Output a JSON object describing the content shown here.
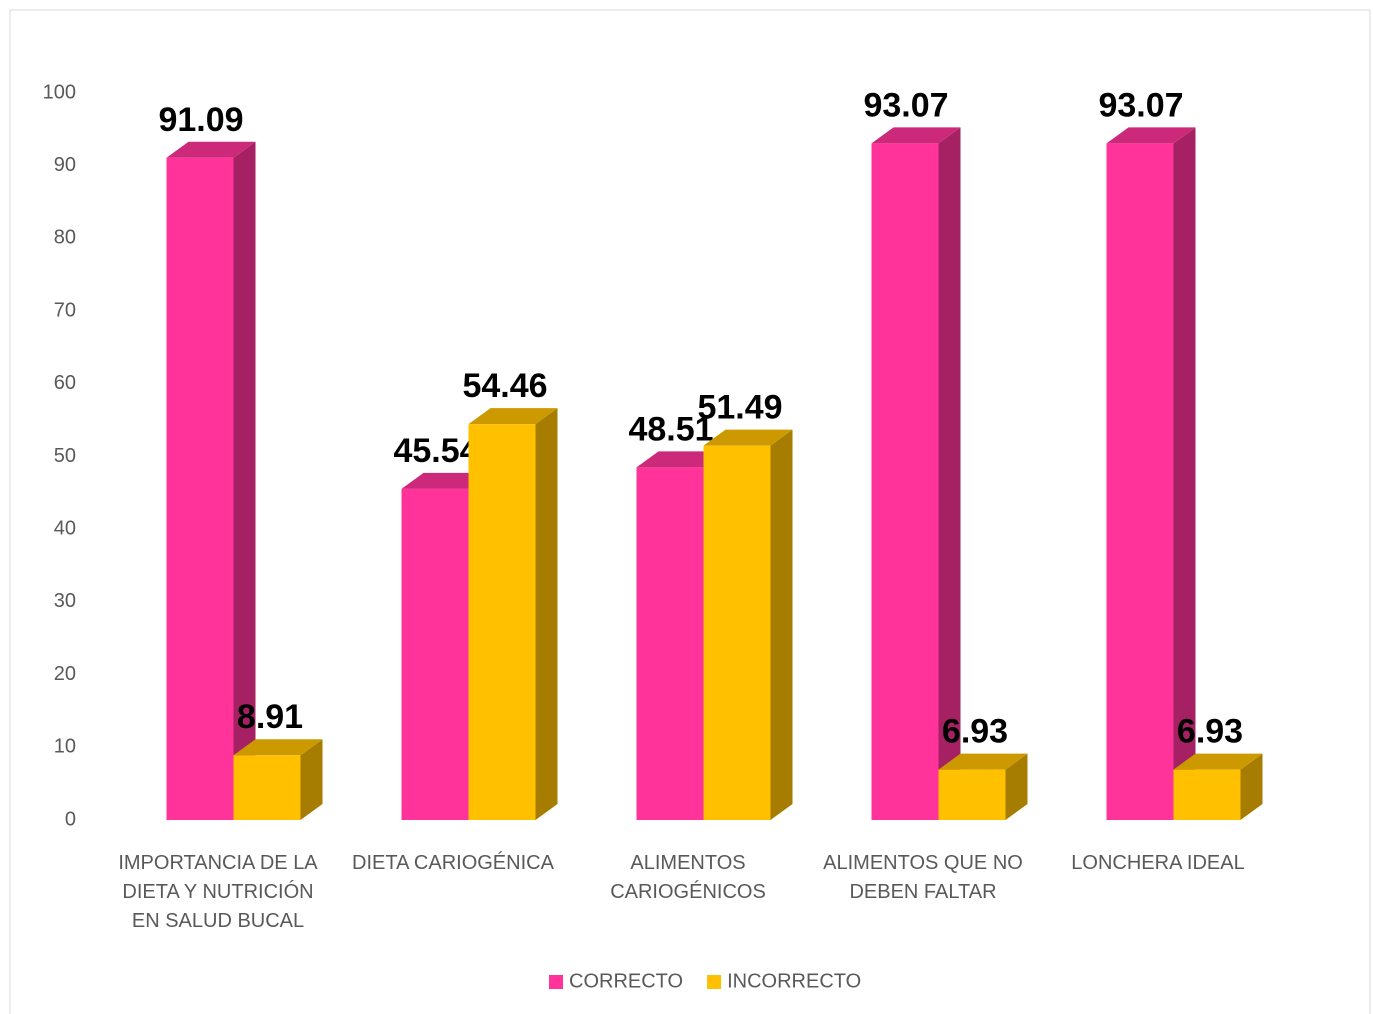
{
  "chart_data": {
    "type": "bar3d",
    "categories": [
      "IMPORTANCIA DE LA DIETA Y NUTRICIÓN EN SALUD BUCAL",
      "DIETA CARIOGÉNICA",
      "ALIMENTOS CARIOGÉNICOS",
      "ALIMENTOS QUE NO DEBEN FALTAR",
      "LONCHERA IDEAL"
    ],
    "series": [
      {
        "name": "CORRECTO",
        "color": "#ff3399",
        "values": [
          91.09,
          45.54,
          48.51,
          93.07,
          93.07
        ]
      },
      {
        "name": "INCORRECTO",
        "color": "#ffc000",
        "values": [
          8.91,
          54.46,
          51.49,
          6.93,
          6.93
        ]
      }
    ],
    "ylim": [
      0,
      100
    ],
    "yticks": [
      0,
      10,
      20,
      30,
      40,
      50,
      60,
      70,
      80,
      90,
      100
    ],
    "grid": false,
    "legend": "bottom"
  }
}
